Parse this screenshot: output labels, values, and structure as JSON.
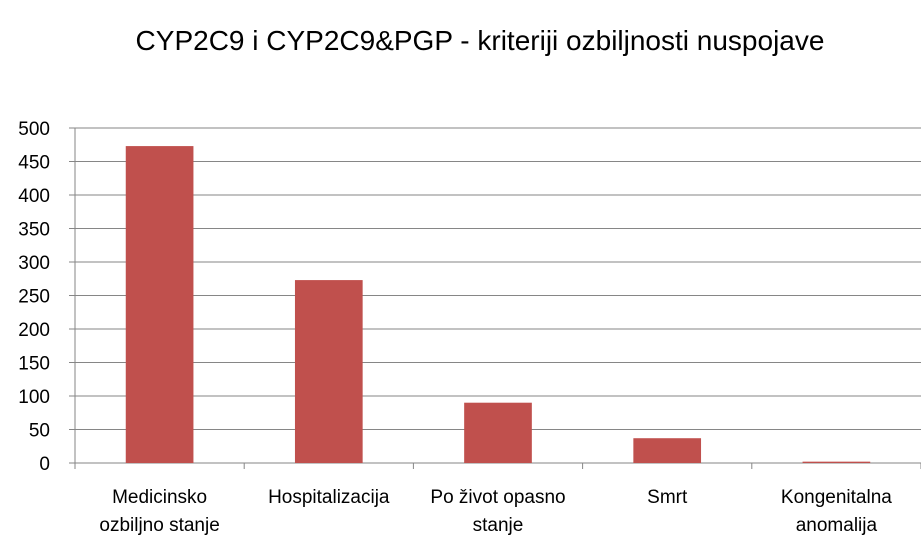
{
  "chart_data": {
    "type": "bar",
    "title": "CYP2C9 i CYP2C9&PGP - kriteriji ozbiljnosti nuspojave",
    "categories": [
      "Medicinsko ozbiljno stanje",
      "Hospitalizacija",
      "Po život opasno stanje",
      "Smrt",
      "Kongenitalna anomalija"
    ],
    "values": [
      473,
      273,
      90,
      37,
      2
    ],
    "color": "#c0504d",
    "ylim": [
      0,
      500
    ],
    "yticks": [
      0,
      50,
      100,
      150,
      200,
      250,
      300,
      350,
      400,
      450,
      500
    ],
    "grid": true
  }
}
